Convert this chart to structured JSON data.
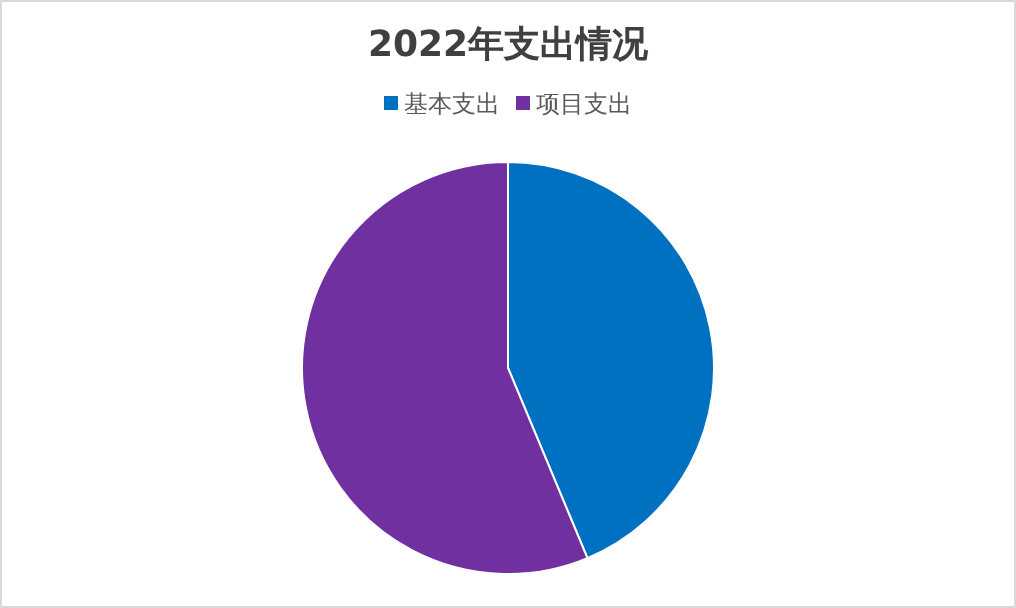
{
  "chart_data": {
    "type": "pie",
    "title": "2022年支出情况",
    "legend": "top",
    "categories": [
      "基本支出",
      "项目支出"
    ],
    "values": [
      43.7,
      56.3
    ],
    "colors": [
      "#0070c0",
      "#7030a0"
    ]
  }
}
